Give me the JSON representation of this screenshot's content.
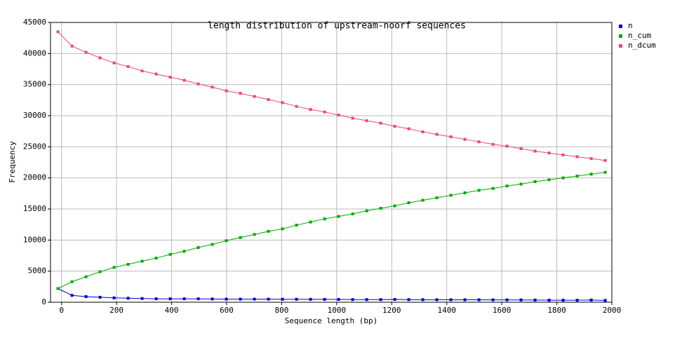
{
  "chart_data": {
    "type": "line",
    "title": "length distribution of upstream-noorf sequences",
    "x_label": "Sequence length (bp)",
    "y_label": "Frequency",
    "x": [
      -13,
      38,
      89,
      140,
      191,
      242,
      293,
      344,
      395,
      446,
      497,
      548,
      599,
      650,
      701,
      752,
      803,
      854,
      905,
      956,
      1007,
      1058,
      1109,
      1160,
      1211,
      1262,
      1313,
      1364,
      1415,
      1466,
      1517,
      1568,
      1619,
      1670,
      1721,
      1772,
      1823,
      1874,
      1925,
      1976
    ],
    "series": [
      {
        "name": "n",
        "color": "#0000cc",
        "values": [
          2200,
          1100,
          900,
          800,
          700,
          650,
          600,
          550,
          550,
          550,
          550,
          520,
          500,
          500,
          500,
          500,
          480,
          480,
          470,
          460,
          450,
          430,
          420,
          420,
          450,
          420,
          410,
          400,
          400,
          400,
          390,
          380,
          380,
          370,
          350,
          330,
          330,
          320,
          350,
          300
        ]
      },
      {
        "name": "n_cum",
        "color": "#00aa00",
        "values": [
          2200,
          3300,
          4100,
          4900,
          5600,
          6100,
          6600,
          7100,
          7700,
          8200,
          8800,
          9300,
          9900,
          10400,
          10900,
          11400,
          11800,
          12400,
          12900,
          13400,
          13800,
          14200,
          14700,
          15100,
          15500,
          16000,
          16400,
          16800,
          17200,
          17600,
          18000,
          18300,
          18700,
          19000,
          19400,
          19700,
          20000,
          20300,
          20600,
          20900
        ]
      },
      {
        "name": "n_dcum",
        "color": "#ee4477",
        "values": [
          43500,
          41200,
          40200,
          39300,
          38500,
          37900,
          37200,
          36700,
          36200,
          35700,
          35100,
          34600,
          34000,
          33600,
          33100,
          32600,
          32100,
          31500,
          31000,
          30600,
          30100,
          29600,
          29200,
          28800,
          28300,
          27900,
          27400,
          27000,
          26600,
          26200,
          25800,
          25400,
          25100,
          24700,
          24300,
          24000,
          23700,
          23400,
          23100,
          22800
        ]
      }
    ],
    "xlim": [
      -40,
      2000
    ],
    "ylim": [
      0,
      45000
    ],
    "xticks": [
      0,
      200,
      400,
      600,
      800,
      1000,
      1200,
      1400,
      1600,
      1800,
      2000
    ],
    "yticks": [
      0,
      5000,
      10000,
      15000,
      20000,
      25000,
      30000,
      35000,
      40000,
      45000
    ],
    "grid": true,
    "legend": "right"
  }
}
